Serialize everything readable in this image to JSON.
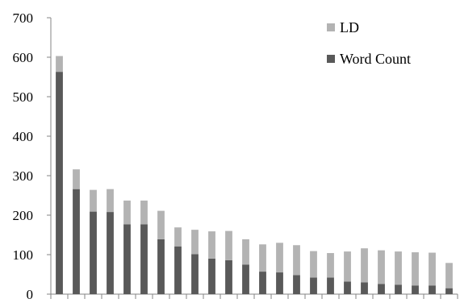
{
  "chart_data": {
    "type": "bar",
    "stacked": true,
    "categories": [
      "",
      "",
      "",
      "",
      "",
      "",
      "",
      "",
      "",
      "",
      "",
      "",
      "",
      "",
      "",
      "",
      "",
      "",
      "",
      "",
      "",
      "",
      "",
      ""
    ],
    "series": [
      {
        "name": "Word Count",
        "color": "#595959",
        "values": [
          563,
          266,
          209,
          208,
          177,
          177,
          139,
          121,
          101,
          90,
          86,
          75,
          57,
          55,
          48,
          42,
          42,
          32,
          30,
          26,
          24,
          22,
          22,
          15
        ]
      },
      {
        "name": "LD",
        "color": "#b3b3b3",
        "values": [
          40,
          50,
          55,
          58,
          60,
          60,
          72,
          48,
          62,
          69,
          74,
          64,
          69,
          75,
          76,
          67,
          62,
          76,
          86,
          85,
          84,
          84,
          83,
          64
        ]
      }
    ],
    "ylim": [
      0,
      700
    ],
    "yticks": [
      0,
      100,
      200,
      300,
      400,
      500,
      600,
      700
    ],
    "xlabel": "",
    "ylabel": "",
    "title": "",
    "grid": false,
    "legend_position": "top-right",
    "legend_order": [
      "LD",
      "Word Count"
    ]
  }
}
